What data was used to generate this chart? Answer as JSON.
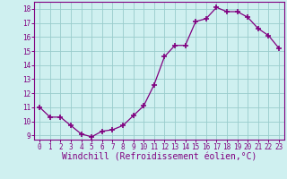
{
  "x": [
    0,
    1,
    2,
    3,
    4,
    5,
    6,
    7,
    8,
    9,
    10,
    11,
    12,
    13,
    14,
    15,
    16,
    17,
    18,
    19,
    20,
    21,
    22,
    23
  ],
  "y": [
    11.0,
    10.3,
    10.3,
    9.7,
    9.1,
    8.9,
    9.3,
    9.4,
    9.7,
    10.4,
    11.1,
    12.6,
    14.6,
    15.4,
    15.4,
    17.1,
    17.3,
    18.1,
    17.8,
    17.8,
    17.4,
    16.6,
    16.1,
    15.2
  ],
  "line_color": "#800080",
  "marker": "+",
  "marker_size": 4,
  "bg_color": "#cff0f0",
  "grid_color": "#99cccc",
  "xlabel": "Windchill (Refroidissement éolien,°C)",
  "ylim": [
    8.7,
    18.5
  ],
  "xlim": [
    -0.5,
    23.5
  ],
  "yticks": [
    9,
    10,
    11,
    12,
    13,
    14,
    15,
    16,
    17,
    18
  ],
  "xticks": [
    0,
    1,
    2,
    3,
    4,
    5,
    6,
    7,
    8,
    9,
    10,
    11,
    12,
    13,
    14,
    15,
    16,
    17,
    18,
    19,
    20,
    21,
    22,
    23
  ],
  "tick_label_color": "#800080",
  "tick_fontsize": 5.5,
  "xlabel_fontsize": 7.0,
  "spine_color": "#800080"
}
